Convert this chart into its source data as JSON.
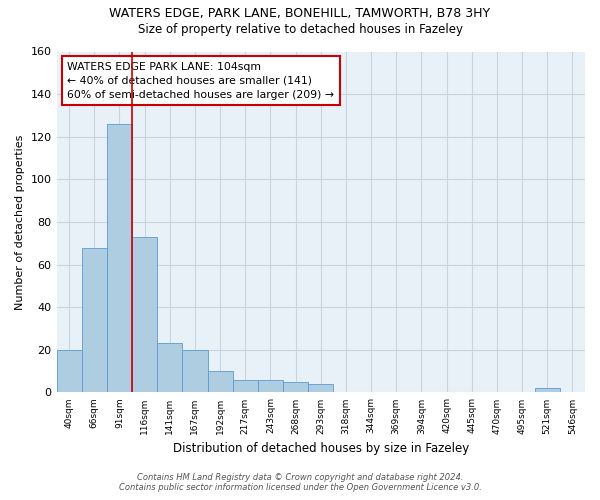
{
  "title1": "WATERS EDGE, PARK LANE, BONEHILL, TAMWORTH, B78 3HY",
  "title2": "Size of property relative to detached houses in Fazeley",
  "xlabel": "Distribution of detached houses by size in Fazeley",
  "ylabel": "Number of detached properties",
  "bar_labels": [
    "40sqm",
    "66sqm",
    "91sqm",
    "116sqm",
    "141sqm",
    "167sqm",
    "192sqm",
    "217sqm",
    "243sqm",
    "268sqm",
    "293sqm",
    "318sqm",
    "344sqm",
    "369sqm",
    "394sqm",
    "420sqm",
    "445sqm",
    "470sqm",
    "495sqm",
    "521sqm",
    "546sqm"
  ],
  "bar_values": [
    20,
    68,
    126,
    73,
    23,
    20,
    10,
    6,
    6,
    5,
    4,
    0,
    0,
    0,
    0,
    0,
    0,
    0,
    0,
    2,
    0
  ],
  "bar_color": "#aecde0",
  "bar_edge_color": "#5b9bd5",
  "bg_color": "#ffffff",
  "plot_bg_color": "#e8f0f8",
  "grid_color": "#c8d4e0",
  "annotation_text": "WATERS EDGE PARK LANE: 104sqm\n← 40% of detached houses are smaller (141)\n60% of semi-detached houses are larger (209) →",
  "annotation_box_color": "#ffffff",
  "annotation_box_edge": "#cc0000",
  "red_line_x": 3.0,
  "ylim": [
    0,
    160
  ],
  "yticks": [
    0,
    20,
    40,
    60,
    80,
    100,
    120,
    140,
    160
  ],
  "footer1": "Contains HM Land Registry data © Crown copyright and database right 2024.",
  "footer2": "Contains public sector information licensed under the Open Government Licence v3.0."
}
